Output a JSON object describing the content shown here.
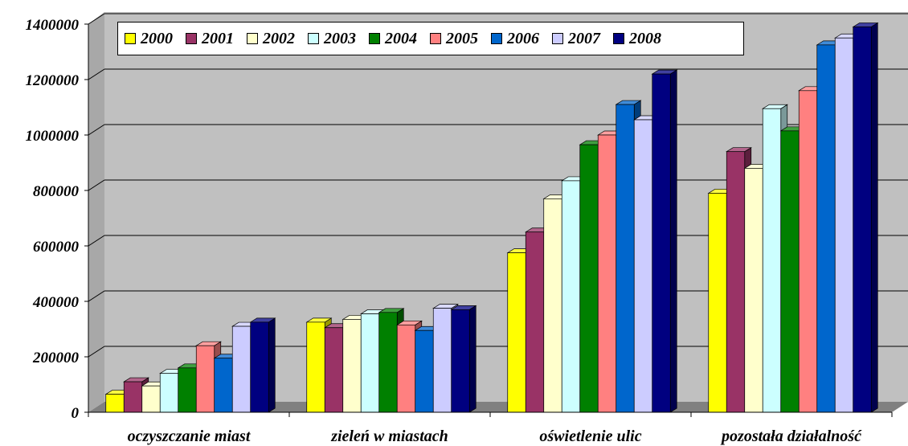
{
  "chart_data": {
    "type": "bar",
    "categories": [
      "oczyszczanie miast",
      "zieleń w miastach",
      "oświetlenie ulic",
      "pozostała działalność"
    ],
    "series": [
      {
        "name": "2000",
        "color": "#FFFF00",
        "values": [
          65000,
          325000,
          575000,
          790000
        ]
      },
      {
        "name": "2001",
        "color": "#993366",
        "values": [
          110000,
          305000,
          650000,
          940000
        ]
      },
      {
        "name": "2002",
        "color": "#FFFFCC",
        "values": [
          95000,
          335000,
          770000,
          880000
        ]
      },
      {
        "name": "2003",
        "color": "#CCFFFF",
        "values": [
          140000,
          355000,
          835000,
          1095000
        ]
      },
      {
        "name": "2004",
        "color": "#008000",
        "values": [
          160000,
          360000,
          965000,
          1015000
        ]
      },
      {
        "name": "2005",
        "color": "#FF8080",
        "values": [
          240000,
          315000,
          1000000,
          1160000
        ]
      },
      {
        "name": "2006",
        "color": "#0066CC",
        "values": [
          195000,
          295000,
          1110000,
          1325000
        ]
      },
      {
        "name": "2007",
        "color": "#CCCCFF",
        "values": [
          310000,
          375000,
          1055000,
          1350000
        ]
      },
      {
        "name": "2008",
        "color": "#000080",
        "values": [
          325000,
          370000,
          1220000,
          1390000
        ]
      }
    ],
    "ylim": [
      0,
      1400000
    ],
    "yticks": [
      "0",
      "200000",
      "400000",
      "600000",
      "800000",
      "1000000",
      "1200000",
      "1400000"
    ],
    "grid": true,
    "legend_position": "top",
    "wall_color": "#C0C0C0",
    "floor_color": "#808080"
  }
}
